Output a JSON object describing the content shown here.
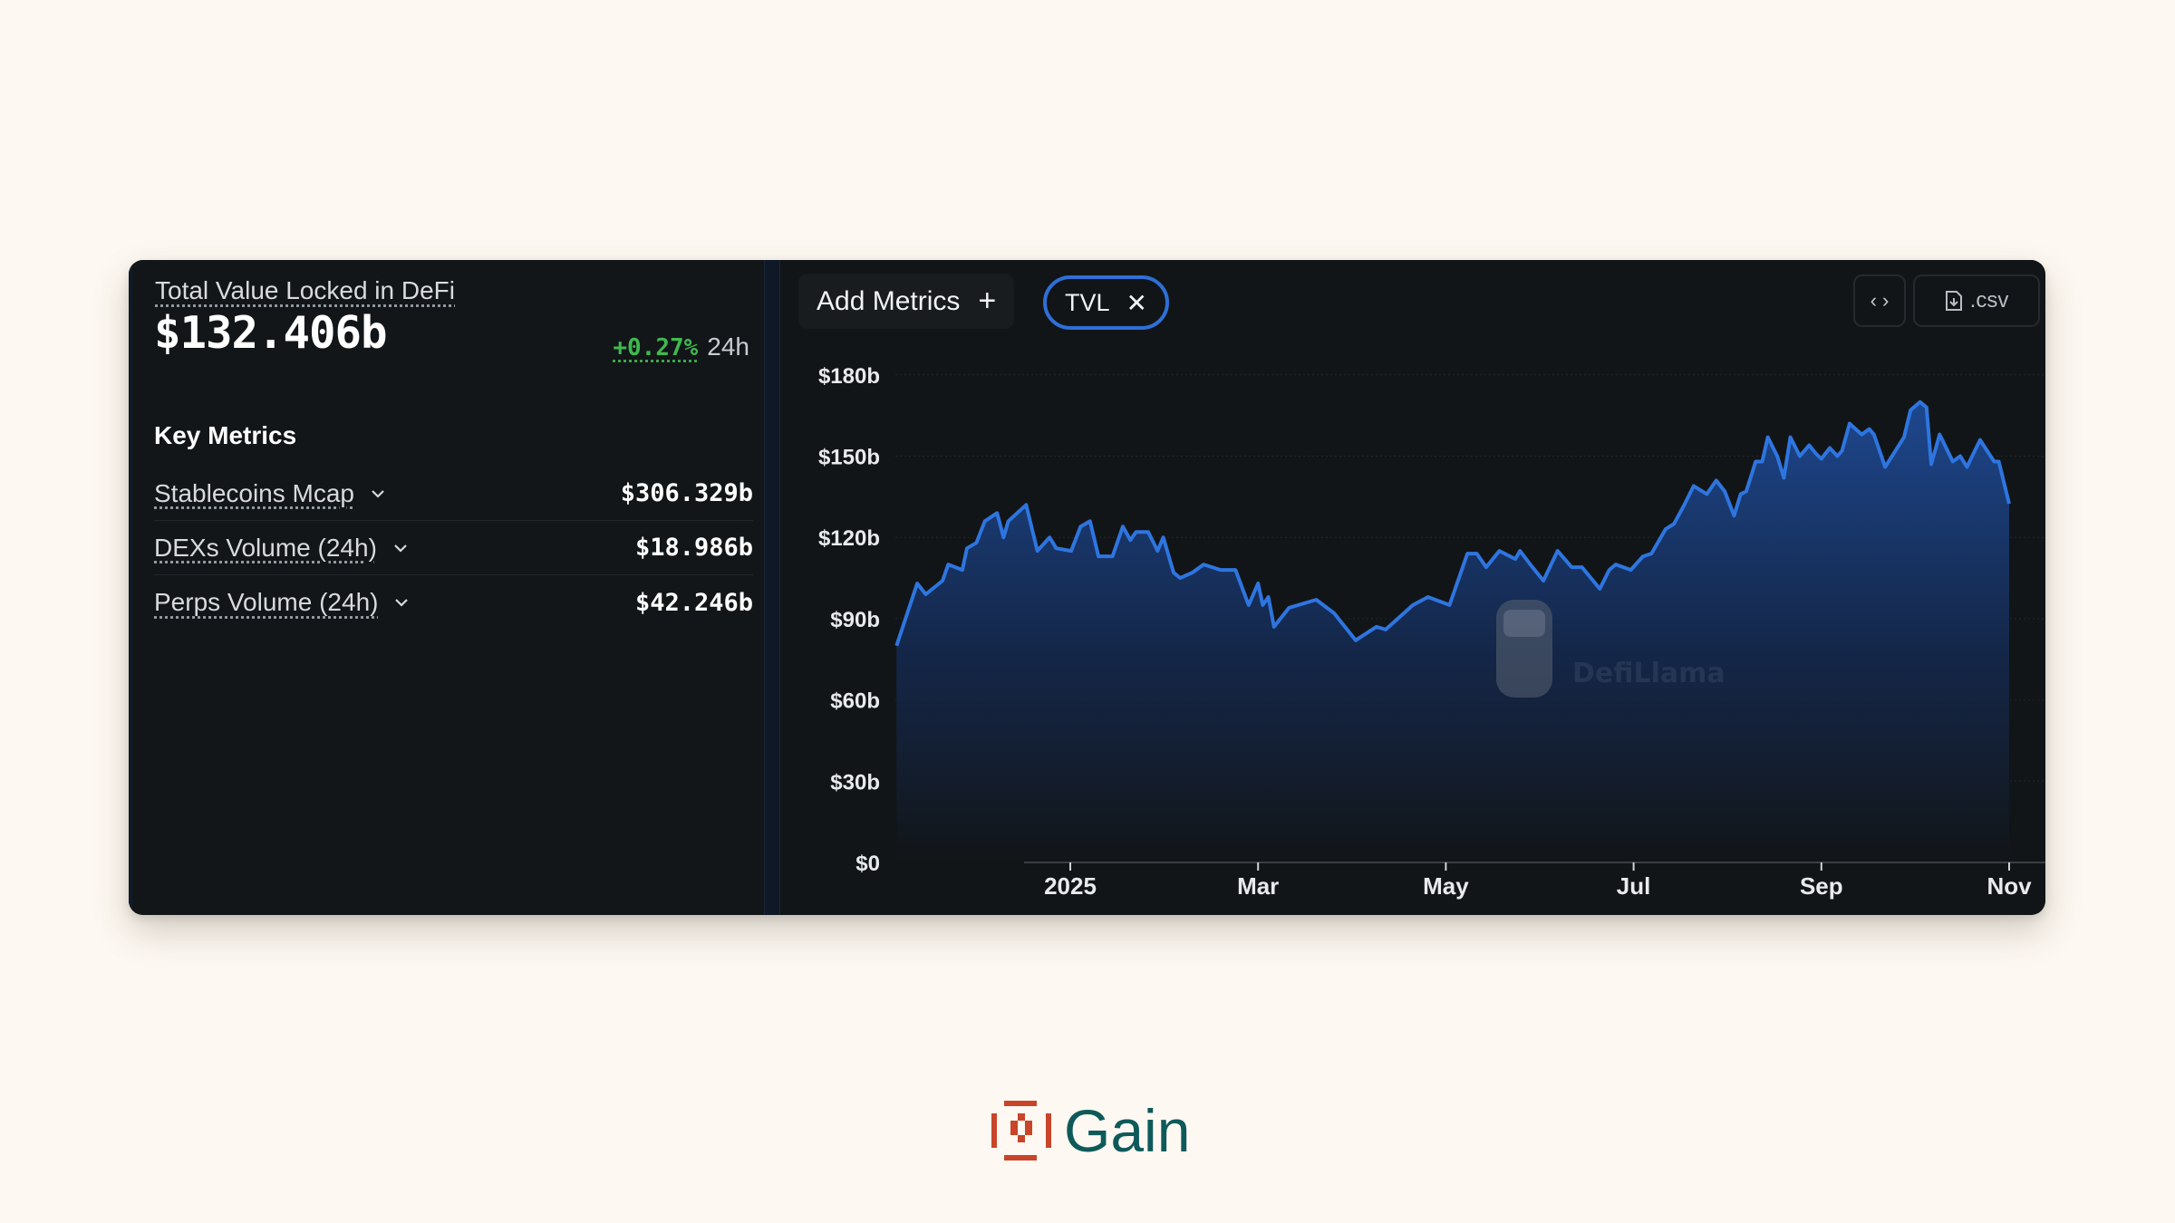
{
  "summary": {
    "title": "Total Value Locked in DeFi",
    "value": "$132.406b",
    "change_pct": "+0.27%",
    "change_period": "24h"
  },
  "key_metrics": {
    "title": "Key Metrics",
    "items": [
      {
        "label": "Stablecoins Mcap",
        "value": "$306.329b"
      },
      {
        "label": "DEXs Volume (24h)",
        "value": "$18.986b"
      },
      {
        "label": "Perps Volume (24h)",
        "value": "$42.246b"
      }
    ]
  },
  "toolbar": {
    "add_metrics_label": "Add Metrics",
    "add_icon": "plus-icon",
    "active_metric_chip": "TVL",
    "chip_close_icon": "close-icon",
    "embed_icon": "code-icon",
    "csv_label": ".csv",
    "csv_icon": "file-download-icon"
  },
  "watermark": "DefiLlama",
  "brand": {
    "name": "Gain",
    "logo_color": "#C8452A",
    "text_color": "#0E5A5A"
  },
  "colors": {
    "line": "#2e75e0",
    "positive": "#3fb950",
    "chip_border": "#2e6fd8",
    "background": "#fdf8f1",
    "card": "#121517"
  },
  "chart_data": {
    "type": "area",
    "title": "Total Value Locked in DeFi",
    "series": [
      {
        "name": "TVL",
        "unit": "$b"
      }
    ],
    "ylabel": "",
    "xlabel": "",
    "y_ticks": [
      "$0",
      "$30b",
      "$60b",
      "$90b",
      "$120b",
      "$150b",
      "$180b"
    ],
    "ylim": [
      0,
      180
    ],
    "x_ticks": [
      "2025",
      "Mar",
      "May",
      "Jul",
      "Sep",
      "Nov"
    ],
    "x_tick_months": [
      0,
      2,
      4,
      6,
      8,
      10
    ],
    "x_range_months": [
      -1.85,
      10.2
    ],
    "grid": true,
    "legend": "none",
    "points_month_offset_from_2025_jan": [
      -1.85,
      -1.63,
      -1.54,
      -1.36,
      -1.3,
      -1.15,
      -1.1,
      -1.0,
      -0.91,
      -0.78,
      -0.71,
      -0.66,
      -0.47,
      -0.35,
      -0.22,
      -0.15,
      0.01,
      0.11,
      0.21,
      0.3,
      0.45,
      0.56,
      0.64,
      0.7,
      0.83,
      0.93,
      0.99,
      1.1,
      1.17,
      1.3,
      1.42,
      1.6,
      1.76,
      1.9,
      2.0,
      2.05,
      2.11,
      2.17,
      2.33,
      2.62,
      2.81,
      3.04,
      3.26,
      3.36,
      3.65,
      3.81,
      4.04,
      4.23,
      4.33,
      4.43,
      4.57,
      4.74,
      4.79,
      4.9,
      5.04,
      5.19,
      5.34,
      5.45,
      5.64,
      5.74,
      5.81,
      5.97,
      6.1,
      6.19,
      6.34,
      6.43,
      6.54,
      6.64,
      6.78,
      6.88,
      6.97,
      7.07,
      7.14,
      7.2,
      7.3,
      7.37,
      7.43,
      7.53,
      7.6,
      7.67,
      7.77,
      7.87,
      7.94,
      8.0,
      8.09,
      8.17,
      8.22,
      8.3,
      8.43,
      8.51,
      8.56,
      8.68,
      8.88,
      8.95,
      9.05,
      9.12,
      9.17,
      9.26,
      9.4,
      9.48,
      9.55,
      9.69,
      9.84,
      9.89,
      10.0
    ],
    "values": [
      80,
      103,
      99,
      104,
      110,
      108,
      116,
      118,
      126,
      129,
      120,
      126,
      132,
      115,
      120,
      116,
      115,
      124,
      126,
      113,
      113,
      124,
      119,
      122,
      122,
      115,
      120,
      107,
      105,
      107,
      110,
      108,
      108,
      95,
      103,
      95,
      98,
      87,
      94,
      97,
      92,
      82,
      87,
      86,
      95,
      98,
      95,
      114,
      114,
      109,
      115,
      112,
      115,
      110,
      104,
      115,
      109,
      109,
      101,
      108,
      110,
      108,
      113,
      114,
      123,
      125,
      132,
      139,
      136,
      141,
      137,
      128,
      136,
      137,
      148,
      148,
      157,
      150,
      142,
      157,
      150,
      154,
      151,
      149,
      153,
      150,
      152,
      162,
      158,
      160,
      158,
      146,
      157,
      167,
      170,
      168,
      147,
      158,
      148,
      150,
      146,
      156,
      148,
      148,
      132.4
    ]
  }
}
